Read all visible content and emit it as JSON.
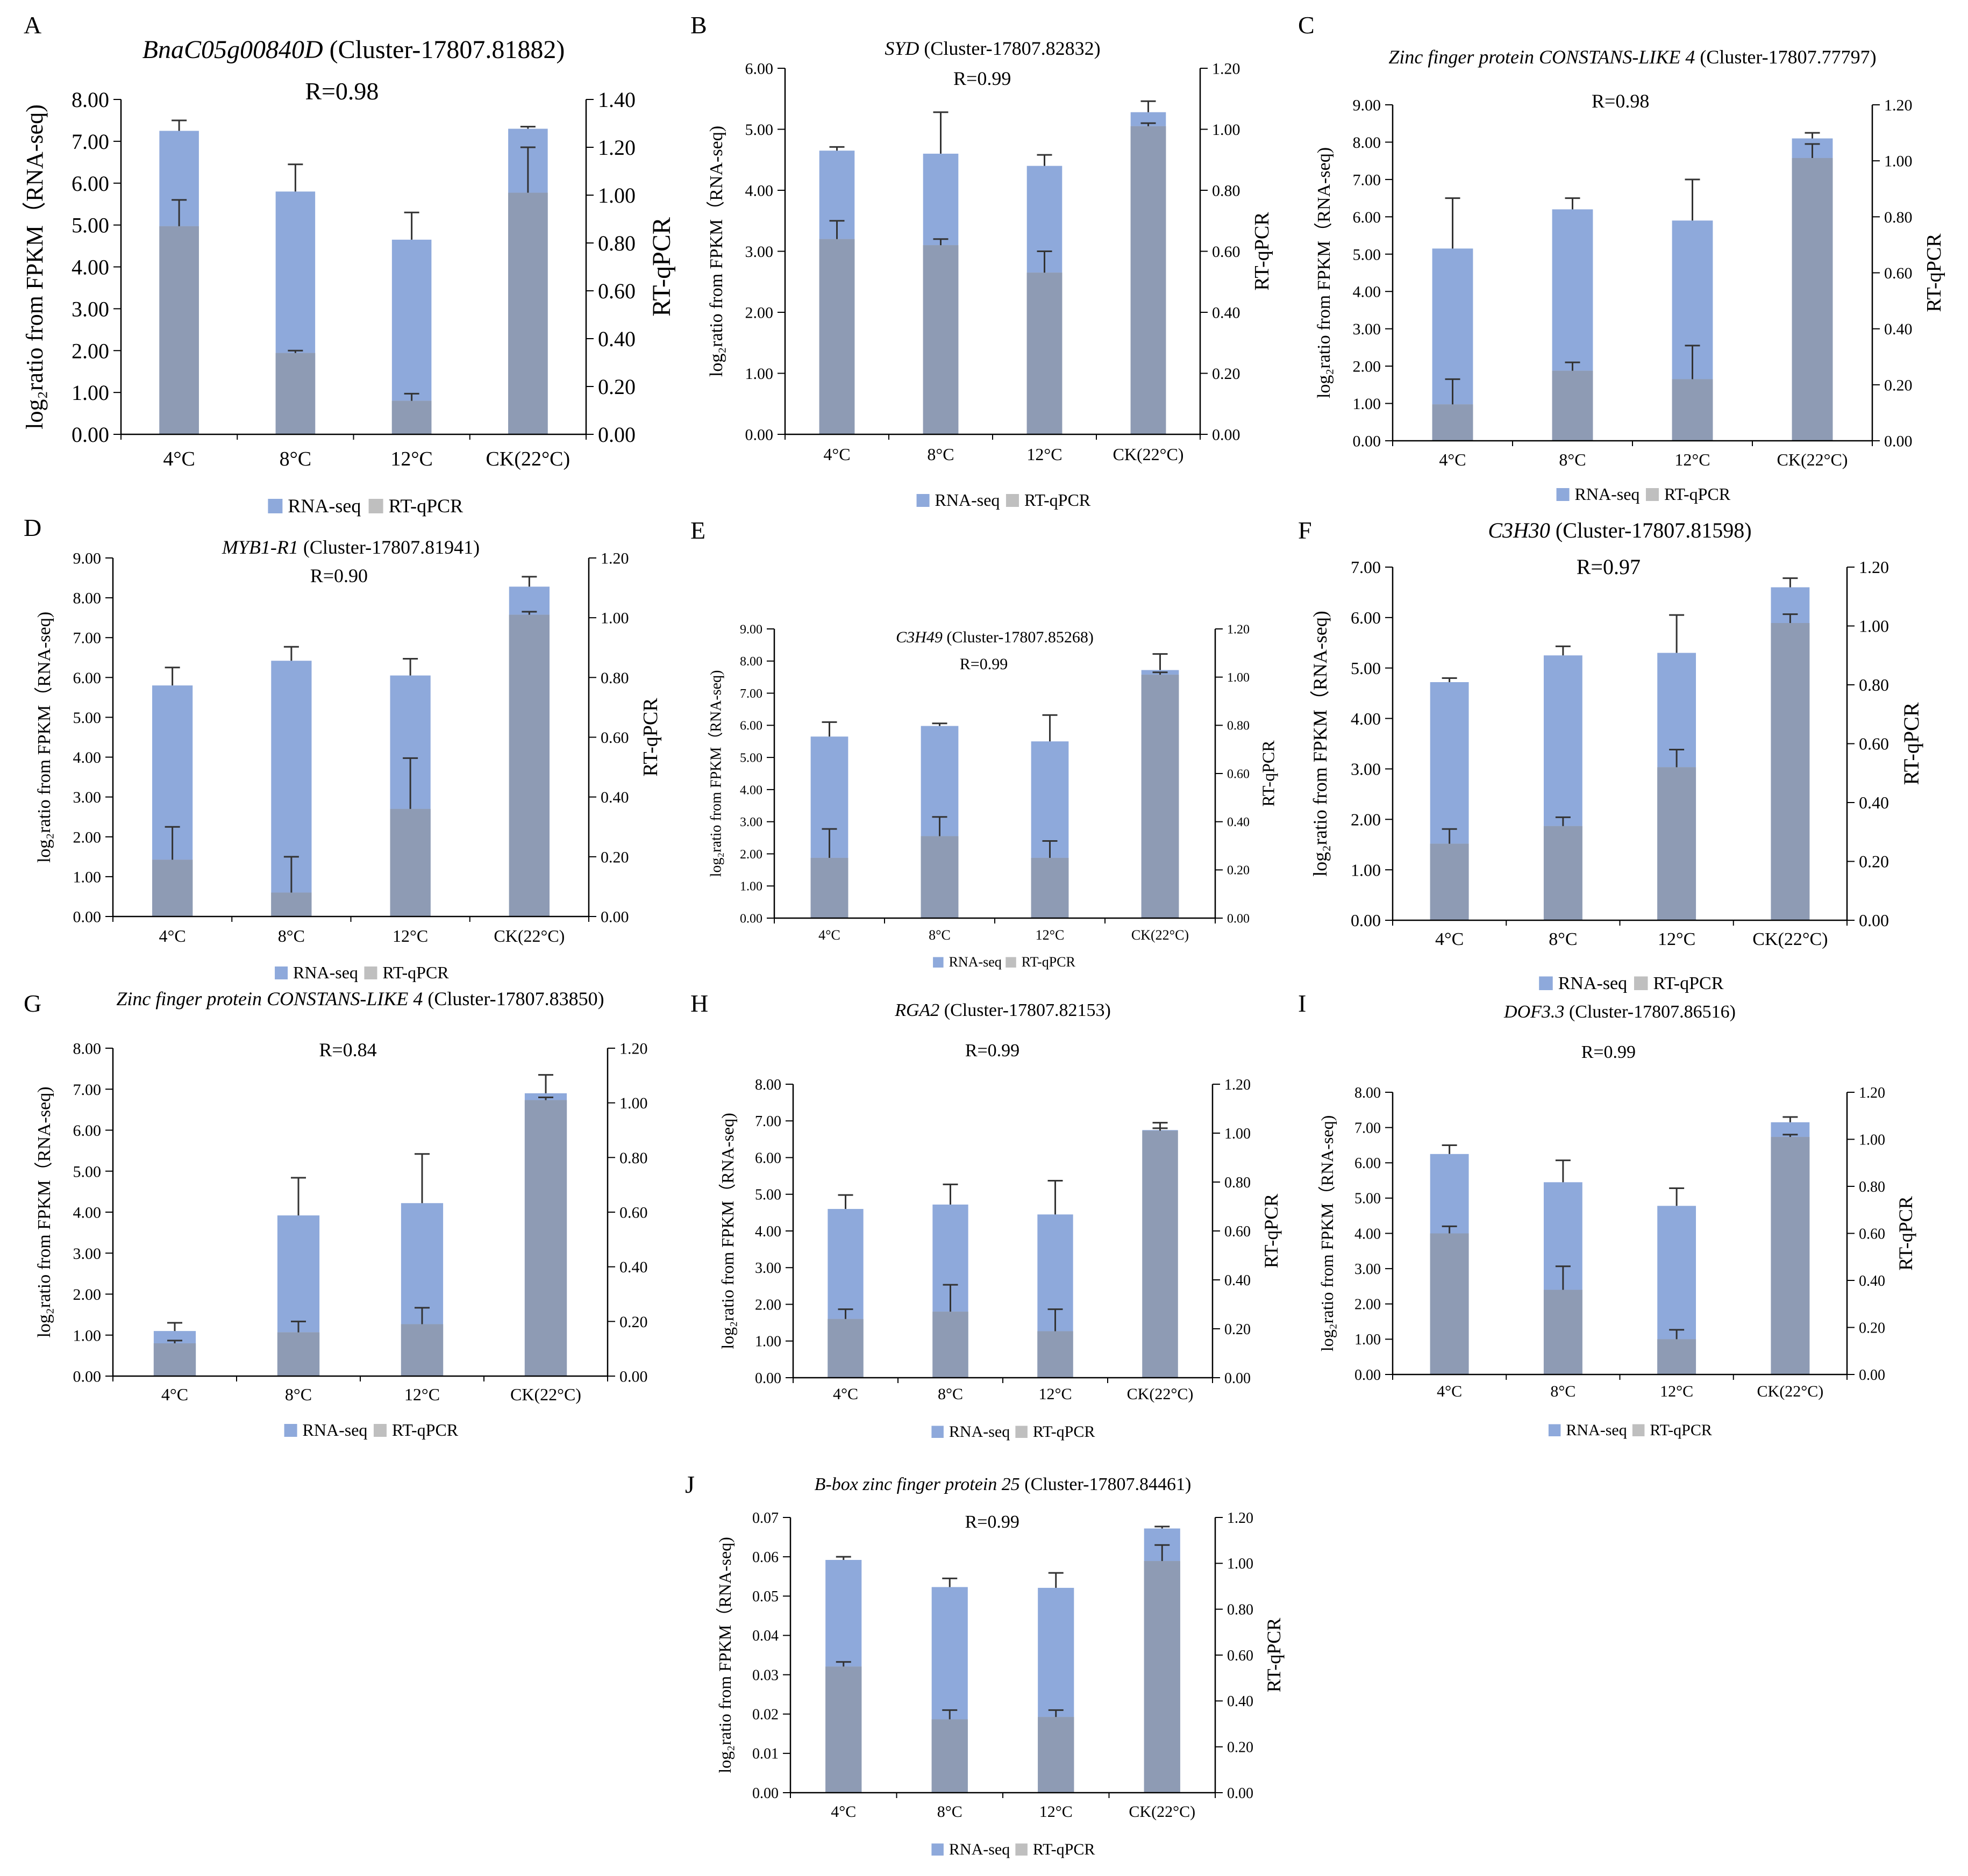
{
  "figure": {
    "series_names": [
      "RNA-seq",
      "RT-qPCR"
    ],
    "colors": {
      "rnaseq": "#8EA9DB",
      "rtqpcr": "#BFBFBF",
      "overlap": "#8E9BB4",
      "axis": "#000000",
      "errorbar": "#333333"
    }
  },
  "chart_data": [
    {
      "type": "bar",
      "panel": "A",
      "gene": "BnaC05g00840D",
      "cluster": "(Cluster-17807.81882)",
      "r_label": "R=0.98",
      "categories": [
        "4°C",
        "8°C",
        "12°C",
        "CK(22°C)"
      ],
      "ylabel_left": "log₂ratio from FPKM（RNA-seq)",
      "ylabel_right": "RT-qPCR",
      "ylim_left": [
        0,
        8
      ],
      "ylim_right": [
        0,
        1.4
      ],
      "yticks_left": [
        "0.00",
        "1.00",
        "2.00",
        "3.00",
        "4.00",
        "5.00",
        "6.00",
        "7.00",
        "8.00"
      ],
      "yticks_right": [
        "0.00",
        "0.20",
        "0.40",
        "0.60",
        "0.80",
        "1.00",
        "1.20",
        "1.40"
      ],
      "series": [
        {
          "name": "RNA-seq",
          "axis": "left",
          "values": [
            7.25,
            5.8,
            4.65,
            7.3
          ],
          "errors": [
            0.25,
            0.65,
            0.65,
            0.05
          ]
        },
        {
          "name": "RT-qPCR",
          "axis": "right",
          "values": [
            0.87,
            0.34,
            0.14,
            1.01
          ],
          "errors": [
            0.11,
            0.01,
            0.03,
            0.19
          ]
        }
      ]
    },
    {
      "type": "bar",
      "panel": "B",
      "gene": "SYD",
      "cluster": "(Cluster-17807.82832)",
      "r_label": "R=0.99",
      "categories": [
        "4°C",
        "8°C",
        "12°C",
        "CK(22°C)"
      ],
      "ylabel_left": "log₂ratio from FPKM（RNA-seq)",
      "ylabel_right": "RT-qPCR",
      "ylim_left": [
        0,
        6
      ],
      "ylim_right": [
        0,
        1.2
      ],
      "yticks_left": [
        "0.00",
        "1.00",
        "2.00",
        "3.00",
        "4.00",
        "5.00",
        "6.00"
      ],
      "yticks_right": [
        "0.00",
        "0.20",
        "0.40",
        "0.60",
        "0.80",
        "1.00",
        "1.20"
      ],
      "series": [
        {
          "name": "RNA-seq",
          "axis": "left",
          "values": [
            4.65,
            4.6,
            4.4,
            5.28
          ],
          "errors": [
            0.06,
            0.68,
            0.18,
            0.18
          ]
        },
        {
          "name": "RT-qPCR",
          "axis": "right",
          "values": [
            0.64,
            0.62,
            0.53,
            1.01
          ],
          "errors": [
            0.06,
            0.02,
            0.07,
            0.01
          ]
        }
      ]
    },
    {
      "type": "bar",
      "panel": "C",
      "gene": "Zinc finger protein CONSTANS-LIKE 4",
      "cluster": "(Cluster-17807.77797)",
      "r_label": "R=0.98",
      "categories": [
        "4°C",
        "8°C",
        "12°C",
        "CK(22°C)"
      ],
      "ylabel_left": "log₂ratio from FPKM（RNA-seq)",
      "ylabel_right": "RT-qPCR",
      "ylim_left": [
        0,
        9
      ],
      "ylim_right": [
        0,
        1.2
      ],
      "yticks_left": [
        "0.00",
        "1.00",
        "2.00",
        "3.00",
        "4.00",
        "5.00",
        "6.00",
        "7.00",
        "8.00",
        "9.00"
      ],
      "yticks_right": [
        "0.00",
        "0.20",
        "0.40",
        "0.60",
        "0.80",
        "1.00",
        "1.20"
      ],
      "series": [
        {
          "name": "RNA-seq",
          "axis": "left",
          "values": [
            5.15,
            6.2,
            5.9,
            8.1
          ],
          "errors": [
            1.35,
            0.3,
            1.1,
            0.15
          ]
        },
        {
          "name": "RT-qPCR",
          "axis": "right",
          "values": [
            0.13,
            0.25,
            0.22,
            1.01
          ],
          "errors": [
            0.09,
            0.03,
            0.12,
            0.05
          ]
        }
      ]
    },
    {
      "type": "bar",
      "panel": "D",
      "gene": "MYB1-R1",
      "cluster": "(Cluster-17807.81941)",
      "r_label": "R=0.90",
      "categories": [
        "4°C",
        "8°C",
        "12°C",
        "CK(22°C)"
      ],
      "ylabel_left": "log₂ratio from FPKM（RNA-seq)",
      "ylabel_right": "RT-qPCR",
      "ylim_left": [
        0,
        9
      ],
      "ylim_right": [
        0,
        1.2
      ],
      "yticks_left": [
        "0.00",
        "1.00",
        "2.00",
        "3.00",
        "4.00",
        "5.00",
        "6.00",
        "7.00",
        "8.00",
        "9.00"
      ],
      "yticks_right": [
        "0.00",
        "0.20",
        "0.40",
        "0.60",
        "0.80",
        "1.00",
        "1.20"
      ],
      "series": [
        {
          "name": "RNA-seq",
          "axis": "left",
          "values": [
            5.8,
            6.42,
            6.05,
            8.28
          ],
          "errors": [
            0.45,
            0.35,
            0.42,
            0.25
          ]
        },
        {
          "name": "RT-qPCR",
          "axis": "right",
          "values": [
            0.19,
            0.08,
            0.36,
            1.01
          ],
          "errors": [
            0.11,
            0.12,
            0.17,
            0.01
          ]
        }
      ]
    },
    {
      "type": "bar",
      "panel": "E",
      "gene": "C3H49",
      "cluster": "(Cluster-17807.85268)",
      "r_label": "R=0.99",
      "categories": [
        "4°C",
        "8°C",
        "12°C",
        "CK(22°C)"
      ],
      "ylabel_left": "log₂ratio from FPKM（RNA-seq)",
      "ylabel_right": "RT-qPCR",
      "ylim_left": [
        0,
        9
      ],
      "ylim_right": [
        0,
        1.2
      ],
      "yticks_left": [
        "0.00",
        "1.00",
        "2.00",
        "3.00",
        "4.00",
        "5.00",
        "6.00",
        "7.00",
        "8.00",
        "9.00"
      ],
      "yticks_right": [
        "0.00",
        "0.20",
        "0.40",
        "0.60",
        "0.80",
        "1.00",
        "1.20"
      ],
      "series": [
        {
          "name": "RNA-seq",
          "axis": "left",
          "values": [
            5.65,
            5.98,
            5.5,
            7.72
          ],
          "errors": [
            0.45,
            0.08,
            0.82,
            0.5
          ]
        },
        {
          "name": "RT-qPCR",
          "axis": "right",
          "values": [
            0.25,
            0.34,
            0.25,
            1.01
          ],
          "errors": [
            0.12,
            0.08,
            0.07,
            0.01
          ]
        }
      ]
    },
    {
      "type": "bar",
      "panel": "F",
      "gene": "C3H30",
      "cluster": "(Cluster-17807.81598)",
      "r_label": "R=0.97",
      "categories": [
        "4°C",
        "8°C",
        "12°C",
        "CK(22°C)"
      ],
      "ylabel_left": "log₂ratio from FPKM（RNA-seq)",
      "ylabel_right": "RT-qPCR",
      "ylim_left": [
        0,
        7
      ],
      "ylim_right": [
        0,
        1.2
      ],
      "yticks_left": [
        "0.00",
        "1.00",
        "2.00",
        "3.00",
        "4.00",
        "5.00",
        "6.00",
        "7.00"
      ],
      "yticks_right": [
        "0.00",
        "0.20",
        "0.40",
        "0.60",
        "0.80",
        "1.00",
        "1.20"
      ],
      "series": [
        {
          "name": "RNA-seq",
          "axis": "left",
          "values": [
            4.72,
            5.25,
            5.3,
            6.6
          ],
          "errors": [
            0.08,
            0.18,
            0.75,
            0.18
          ]
        },
        {
          "name": "RT-qPCR",
          "axis": "right",
          "values": [
            0.26,
            0.32,
            0.52,
            1.01
          ],
          "errors": [
            0.05,
            0.03,
            0.06,
            0.03
          ]
        }
      ]
    },
    {
      "type": "bar",
      "panel": "G",
      "gene": "Zinc finger protein CONSTANS-LIKE 4",
      "cluster": "(Cluster-17807.83850)",
      "r_label": "R=0.84",
      "categories": [
        "4°C",
        "8°C",
        "12°C",
        "CK(22°C)"
      ],
      "ylabel_left": "log₂ratio from FPKM（RNA-seq)",
      "ylabel_right": "",
      "ylim_left": [
        0,
        8
      ],
      "ylim_right": [
        0,
        1.2
      ],
      "yticks_left": [
        "0.00",
        "1.00",
        "2.00",
        "3.00",
        "4.00",
        "5.00",
        "6.00",
        "7.00",
        "8.00"
      ],
      "yticks_right": [
        "0.00",
        "0.20",
        "0.40",
        "0.60",
        "0.80",
        "1.00",
        "1.20"
      ],
      "series": [
        {
          "name": "RNA-seq",
          "axis": "left",
          "values": [
            1.1,
            3.92,
            4.22,
            6.9
          ],
          "errors": [
            0.2,
            0.92,
            1.2,
            0.45
          ]
        },
        {
          "name": "RT-qPCR",
          "axis": "right",
          "values": [
            0.12,
            0.16,
            0.19,
            1.01
          ],
          "errors": [
            0.01,
            0.04,
            0.06,
            0.01
          ]
        }
      ]
    },
    {
      "type": "bar",
      "panel": "H",
      "gene": "RGA2",
      "cluster": "(Cluster-17807.82153)",
      "r_label": "R=0.99",
      "categories": [
        "4°C",
        "8°C",
        "12°C",
        "CK(22°C)"
      ],
      "ylabel_left": "log₂ratio from FPKM（RNA-seq)",
      "ylabel_right": "RT-qPCR",
      "ylim_left": [
        0,
        8
      ],
      "ylim_right": [
        0,
        1.2
      ],
      "yticks_left": [
        "0.00",
        "1.00",
        "2.00",
        "3.00",
        "4.00",
        "5.00",
        "6.00",
        "7.00",
        "8.00"
      ],
      "yticks_right": [
        "0.00",
        "0.20",
        "0.40",
        "0.60",
        "0.80",
        "1.00",
        "1.20"
      ],
      "series": [
        {
          "name": "RNA-seq",
          "axis": "left",
          "values": [
            4.6,
            4.72,
            4.45,
            6.75
          ],
          "errors": [
            0.38,
            0.55,
            0.92,
            0.2
          ]
        },
        {
          "name": "RT-qPCR",
          "axis": "right",
          "values": [
            0.24,
            0.27,
            0.19,
            1.01
          ],
          "errors": [
            0.04,
            0.11,
            0.09,
            0.01
          ]
        }
      ]
    },
    {
      "type": "bar",
      "panel": "I",
      "gene": "DOF3.3",
      "cluster": "(Cluster-17807.86516)",
      "r_label": "R=0.99",
      "categories": [
        "4°C",
        "8°C",
        "12°C",
        "CK(22°C)"
      ],
      "ylabel_left": "log₂ratio from FPKM（RNA-seq)",
      "ylabel_right": "RT-qPCR",
      "ylim_left": [
        0,
        8
      ],
      "ylim_right": [
        0,
        1.2
      ],
      "yticks_left": [
        "0.00",
        "1.00",
        "2.00",
        "3.00",
        "4.00",
        "5.00",
        "6.00",
        "7.00",
        "8.00"
      ],
      "yticks_right": [
        "0.00",
        "0.20",
        "0.40",
        "0.60",
        "0.80",
        "1.00",
        "1.20"
      ],
      "series": [
        {
          "name": "RNA-seq",
          "axis": "left",
          "values": [
            6.25,
            5.45,
            4.78,
            7.15
          ],
          "errors": [
            0.25,
            0.62,
            0.5,
            0.15
          ]
        },
        {
          "name": "RT-qPCR",
          "axis": "right",
          "values": [
            0.6,
            0.36,
            0.15,
            1.01
          ],
          "errors": [
            0.03,
            0.1,
            0.04,
            0.01
          ]
        }
      ]
    },
    {
      "type": "bar",
      "panel": "J",
      "gene": "B-box zinc finger protein 25",
      "cluster": "(Cluster-17807.84461)",
      "r_label": "R=0.99",
      "categories": [
        "4°C",
        "8°C",
        "12°C",
        "CK(22°C)"
      ],
      "ylabel_left": "log₂ratio from FPKM（RNA-seq)",
      "ylabel_right": "RT-qPCR",
      "ylim_left": [
        0,
        0.07
      ],
      "ylim_right": [
        0,
        1.2
      ],
      "yticks_left": [
        "0.00",
        "0.01",
        "0.02",
        "0.03",
        "0.04",
        "0.05",
        "0.06",
        "0.07"
      ],
      "yticks_right": [
        "0.00",
        "0.20",
        "0.40",
        "0.60",
        "0.80",
        "1.00",
        "1.20"
      ],
      "series": [
        {
          "name": "RNA-seq",
          "axis": "left",
          "values": [
            0.0592,
            0.0523,
            0.0521,
            0.0672
          ],
          "errors": [
            0.0008,
            0.0022,
            0.0038,
            0.0005
          ]
        },
        {
          "name": "RT-qPCR",
          "axis": "right",
          "values": [
            0.55,
            0.32,
            0.33,
            1.01
          ],
          "errors": [
            0.02,
            0.04,
            0.03,
            0.07
          ]
        }
      ]
    }
  ]
}
